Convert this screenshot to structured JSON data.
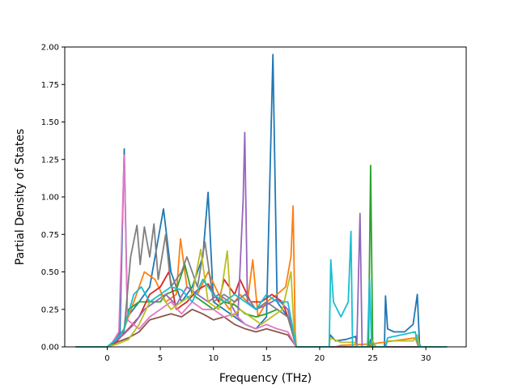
{
  "chart_data": {
    "type": "line",
    "title": "",
    "xlabel": "Frequency (THz)",
    "ylabel": "Partial Density of States",
    "xlim": [
      -4.0,
      33.8
    ],
    "ylim": [
      0,
      2.0
    ],
    "xticks": [
      0,
      5,
      10,
      15,
      20,
      25,
      30
    ],
    "yticks": [
      0.0,
      0.25,
      0.5,
      0.75,
      1.0,
      1.25,
      1.5,
      1.75,
      2.0
    ],
    "ytick_labels": [
      "0.00",
      "0.25",
      "0.50",
      "0.75",
      "1.00",
      "1.25",
      "1.50",
      "1.75",
      "2.00"
    ],
    "grid": false,
    "legend": "none",
    "series": [
      {
        "color": "#1f77b4",
        "points": [
          [
            -3,
            0
          ],
          [
            0,
            0
          ],
          [
            0.5,
            0.02
          ],
          [
            1.2,
            0.1
          ],
          [
            1.6,
            1.32
          ],
          [
            1.9,
            0.2
          ],
          [
            3,
            0.3
          ],
          [
            4,
            0.4
          ],
          [
            5.3,
            0.92
          ],
          [
            6,
            0.5
          ],
          [
            7,
            0.3
          ],
          [
            8,
            0.4
          ],
          [
            9,
            0.6
          ],
          [
            9.5,
            1.03
          ],
          [
            10,
            0.3
          ],
          [
            11,
            0.25
          ],
          [
            12,
            0.2
          ],
          [
            13,
            0.15
          ],
          [
            14,
            0.12
          ],
          [
            15,
            0.2
          ],
          [
            15.6,
            1.95
          ],
          [
            16,
            0.3
          ],
          [
            17,
            0.2
          ],
          [
            17.5,
            0.1
          ],
          [
            17.8,
            0
          ],
          [
            20.9,
            0
          ],
          [
            21,
            0.08
          ],
          [
            21.5,
            0.04
          ],
          [
            22.5,
            0.05
          ],
          [
            23.4,
            0.07
          ],
          [
            23.5,
            0
          ],
          [
            24.7,
            0
          ],
          [
            24.8,
            0.05
          ],
          [
            25.3,
            0
          ],
          [
            26.1,
            0
          ],
          [
            26.2,
            0.34
          ],
          [
            26.4,
            0.12
          ],
          [
            27,
            0.1
          ],
          [
            28,
            0.1
          ],
          [
            28.8,
            0.15
          ],
          [
            29.2,
            0.35
          ],
          [
            29.4,
            0.02
          ],
          [
            29.5,
            0
          ],
          [
            32,
            0
          ]
        ]
      },
      {
        "color": "#ff7f0e",
        "points": [
          [
            -3,
            0
          ],
          [
            0,
            0
          ],
          [
            0.6,
            0.03
          ],
          [
            1.5,
            0.1
          ],
          [
            2,
            0.2
          ],
          [
            3,
            0.4
          ],
          [
            3.5,
            0.5
          ],
          [
            4.5,
            0.45
          ],
          [
            5.5,
            0.3
          ],
          [
            6.5,
            0.35
          ],
          [
            6.9,
            0.72
          ],
          [
            7.5,
            0.4
          ],
          [
            8.5,
            0.35
          ],
          [
            9.5,
            0.5
          ],
          [
            10.5,
            0.35
          ],
          [
            11.5,
            0.25
          ],
          [
            12.5,
            0.35
          ],
          [
            13.2,
            0.3
          ],
          [
            13.7,
            0.58
          ],
          [
            14.2,
            0.2
          ],
          [
            15,
            0.3
          ],
          [
            16,
            0.35
          ],
          [
            16.8,
            0.4
          ],
          [
            17.3,
            0.6
          ],
          [
            17.5,
            0.94
          ],
          [
            17.7,
            0.1
          ],
          [
            17.8,
            0
          ],
          [
            21.5,
            0
          ],
          [
            22,
            0.01
          ],
          [
            25,
            0.02
          ],
          [
            26,
            0.03
          ],
          [
            29,
            0.06
          ],
          [
            29.3,
            0
          ],
          [
            32,
            0
          ]
        ]
      },
      {
        "color": "#2ca02c",
        "points": [
          [
            -3,
            0
          ],
          [
            0,
            0
          ],
          [
            0.7,
            0.04
          ],
          [
            1.5,
            0.08
          ],
          [
            2,
            0.25
          ],
          [
            3,
            0.3
          ],
          [
            4,
            0.3
          ],
          [
            5,
            0.3
          ],
          [
            5.5,
            0.35
          ],
          [
            6.5,
            0.38
          ],
          [
            7.3,
            0.55
          ],
          [
            8,
            0.35
          ],
          [
            9,
            0.3
          ],
          [
            10,
            0.25
          ],
          [
            11,
            0.3
          ],
          [
            12,
            0.28
          ],
          [
            13,
            0.22
          ],
          [
            14,
            0.2
          ],
          [
            15,
            0.22
          ],
          [
            16,
            0.25
          ],
          [
            17,
            0.2
          ],
          [
            17.8,
            0
          ],
          [
            24.6,
            0
          ],
          [
            24.8,
            1.21
          ],
          [
            25,
            0
          ],
          [
            32,
            0
          ]
        ]
      },
      {
        "color": "#d62728",
        "points": [
          [
            -3,
            0
          ],
          [
            0,
            0
          ],
          [
            0.8,
            0.03
          ],
          [
            2,
            0.12
          ],
          [
            3,
            0.2
          ],
          [
            4,
            0.35
          ],
          [
            5,
            0.4
          ],
          [
            5.8,
            0.5
          ],
          [
            6.5,
            0.25
          ],
          [
            7.5,
            0.3
          ],
          [
            8.5,
            0.38
          ],
          [
            9.5,
            0.42
          ],
          [
            10.5,
            0.3
          ],
          [
            11,
            0.45
          ],
          [
            12,
            0.35
          ],
          [
            12.5,
            0.45
          ],
          [
            13.5,
            0.3
          ],
          [
            14.5,
            0.3
          ],
          [
            15.5,
            0.35
          ],
          [
            16.5,
            0.3
          ],
          [
            17.5,
            0.1
          ],
          [
            17.8,
            0
          ],
          [
            32,
            0
          ]
        ]
      },
      {
        "color": "#9467bd",
        "points": [
          [
            -3,
            0
          ],
          [
            0,
            0
          ],
          [
            0.8,
            0.04
          ],
          [
            1.5,
            0.08
          ],
          [
            2.5,
            0.15
          ],
          [
            3.5,
            0.25
          ],
          [
            4.5,
            0.3
          ],
          [
            5.5,
            0.35
          ],
          [
            6.5,
            0.28
          ],
          [
            7.5,
            0.4
          ],
          [
            8.5,
            0.35
          ],
          [
            9.5,
            0.3
          ],
          [
            10.5,
            0.35
          ],
          [
            11.5,
            0.3
          ],
          [
            12.3,
            0.2
          ],
          [
            12.8,
            0.98
          ],
          [
            12.95,
            1.43
          ],
          [
            13.2,
            0.3
          ],
          [
            14,
            0.25
          ],
          [
            15,
            0.28
          ],
          [
            16,
            0.32
          ],
          [
            17,
            0.25
          ],
          [
            17.8,
            0
          ],
          [
            23.5,
            0
          ],
          [
            23.8,
            0.89
          ],
          [
            24,
            0
          ],
          [
            32,
            0
          ]
        ]
      },
      {
        "color": "#8c564b",
        "points": [
          [
            -3,
            0
          ],
          [
            0,
            0
          ],
          [
            0.9,
            0.03
          ],
          [
            2,
            0.06
          ],
          [
            3,
            0.1
          ],
          [
            4,
            0.18
          ],
          [
            5,
            0.2
          ],
          [
            6,
            0.22
          ],
          [
            7,
            0.2
          ],
          [
            8,
            0.25
          ],
          [
            9,
            0.22
          ],
          [
            10,
            0.18
          ],
          [
            11,
            0.2
          ],
          [
            12,
            0.15
          ],
          [
            13,
            0.12
          ],
          [
            14,
            0.1
          ],
          [
            15,
            0.12
          ],
          [
            16,
            0.1
          ],
          [
            17,
            0.08
          ],
          [
            17.8,
            0
          ],
          [
            32,
            0
          ]
        ]
      },
      {
        "color": "#e377c2",
        "points": [
          [
            -3,
            0
          ],
          [
            0,
            0
          ],
          [
            0.5,
            0.03
          ],
          [
            1.1,
            0.1
          ],
          [
            1.6,
            1.28
          ],
          [
            1.9,
            0.18
          ],
          [
            3,
            0.12
          ],
          [
            4,
            0.2
          ],
          [
            5,
            0.25
          ],
          [
            6,
            0.3
          ],
          [
            7,
            0.22
          ],
          [
            8,
            0.3
          ],
          [
            9,
            0.25
          ],
          [
            10,
            0.25
          ],
          [
            11,
            0.2
          ],
          [
            12,
            0.22
          ],
          [
            13,
            0.15
          ],
          [
            14,
            0.12
          ],
          [
            15,
            0.15
          ],
          [
            16,
            0.12
          ],
          [
            17,
            0.1
          ],
          [
            17.8,
            0
          ],
          [
            32,
            0
          ]
        ]
      },
      {
        "color": "#7f7f7f",
        "points": [
          [
            -3,
            0
          ],
          [
            0,
            0
          ],
          [
            0.8,
            0.05
          ],
          [
            1.6,
            0.12
          ],
          [
            2.2,
            0.6
          ],
          [
            2.8,
            0.81
          ],
          [
            3.1,
            0.55
          ],
          [
            3.5,
            0.8
          ],
          [
            4,
            0.6
          ],
          [
            4.4,
            0.82
          ],
          [
            4.8,
            0.45
          ],
          [
            5.5,
            0.75
          ],
          [
            6,
            0.4
          ],
          [
            7,
            0.5
          ],
          [
            7.5,
            0.6
          ],
          [
            8.5,
            0.4
          ],
          [
            9.2,
            0.7
          ],
          [
            10,
            0.3
          ],
          [
            11,
            0.35
          ],
          [
            12,
            0.3
          ],
          [
            13,
            0.35
          ],
          [
            14,
            0.25
          ],
          [
            15,
            0.3
          ],
          [
            16,
            0.25
          ],
          [
            17,
            0.2
          ],
          [
            17.8,
            0
          ],
          [
            32,
            0
          ]
        ]
      },
      {
        "color": "#bcbd22",
        "points": [
          [
            -3,
            0
          ],
          [
            0,
            0
          ],
          [
            1,
            0.02
          ],
          [
            2,
            0.05
          ],
          [
            3,
            0.15
          ],
          [
            4,
            0.3
          ],
          [
            5,
            0.35
          ],
          [
            6,
            0.25
          ],
          [
            7,
            0.3
          ],
          [
            8,
            0.35
          ],
          [
            8.8,
            0.65
          ],
          [
            9.5,
            0.3
          ],
          [
            10.5,
            0.25
          ],
          [
            11.3,
            0.64
          ],
          [
            11.7,
            0.2
          ],
          [
            12.5,
            0.25
          ],
          [
            13.5,
            0.2
          ],
          [
            14.5,
            0.15
          ],
          [
            15.5,
            0.2
          ],
          [
            16.5,
            0.25
          ],
          [
            17.3,
            0.5
          ],
          [
            17.6,
            0.1
          ],
          [
            17.8,
            0
          ],
          [
            20.9,
            0
          ],
          [
            21,
            0.06
          ],
          [
            22,
            0.03
          ],
          [
            23.3,
            0.03
          ],
          [
            23.5,
            0
          ],
          [
            24.8,
            0
          ],
          [
            25,
            0.04
          ],
          [
            25.3,
            0
          ],
          [
            26.2,
            0
          ],
          [
            26.4,
            0.04
          ],
          [
            28.8,
            0.04
          ],
          [
            29.2,
            0.08
          ],
          [
            29.4,
            0
          ],
          [
            32,
            0
          ]
        ]
      },
      {
        "color": "#17becf",
        "points": [
          [
            -3,
            0
          ],
          [
            0,
            0
          ],
          [
            0.7,
            0.04
          ],
          [
            1.5,
            0.1
          ],
          [
            2.5,
            0.35
          ],
          [
            3.2,
            0.4
          ],
          [
            4,
            0.3
          ],
          [
            5,
            0.35
          ],
          [
            6,
            0.4
          ],
          [
            7,
            0.38
          ],
          [
            8,
            0.3
          ],
          [
            9,
            0.45
          ],
          [
            10,
            0.35
          ],
          [
            11,
            0.3
          ],
          [
            12,
            0.35
          ],
          [
            13,
            0.3
          ],
          [
            14,
            0.25
          ],
          [
            15,
            0.35
          ],
          [
            16,
            0.3
          ],
          [
            17,
            0.3
          ],
          [
            17.8,
            0
          ],
          [
            20.9,
            0
          ],
          [
            21.05,
            0.58
          ],
          [
            21.3,
            0.3
          ],
          [
            22,
            0.2
          ],
          [
            22.7,
            0.3
          ],
          [
            22.95,
            0.77
          ],
          [
            23.1,
            0
          ],
          [
            24.5,
            0
          ],
          [
            24.7,
            0.45
          ],
          [
            24.9,
            0
          ],
          [
            26.2,
            0
          ],
          [
            26.4,
            0.06
          ],
          [
            29,
            0.1
          ],
          [
            29.3,
            0
          ],
          [
            32,
            0
          ]
        ]
      }
    ]
  }
}
